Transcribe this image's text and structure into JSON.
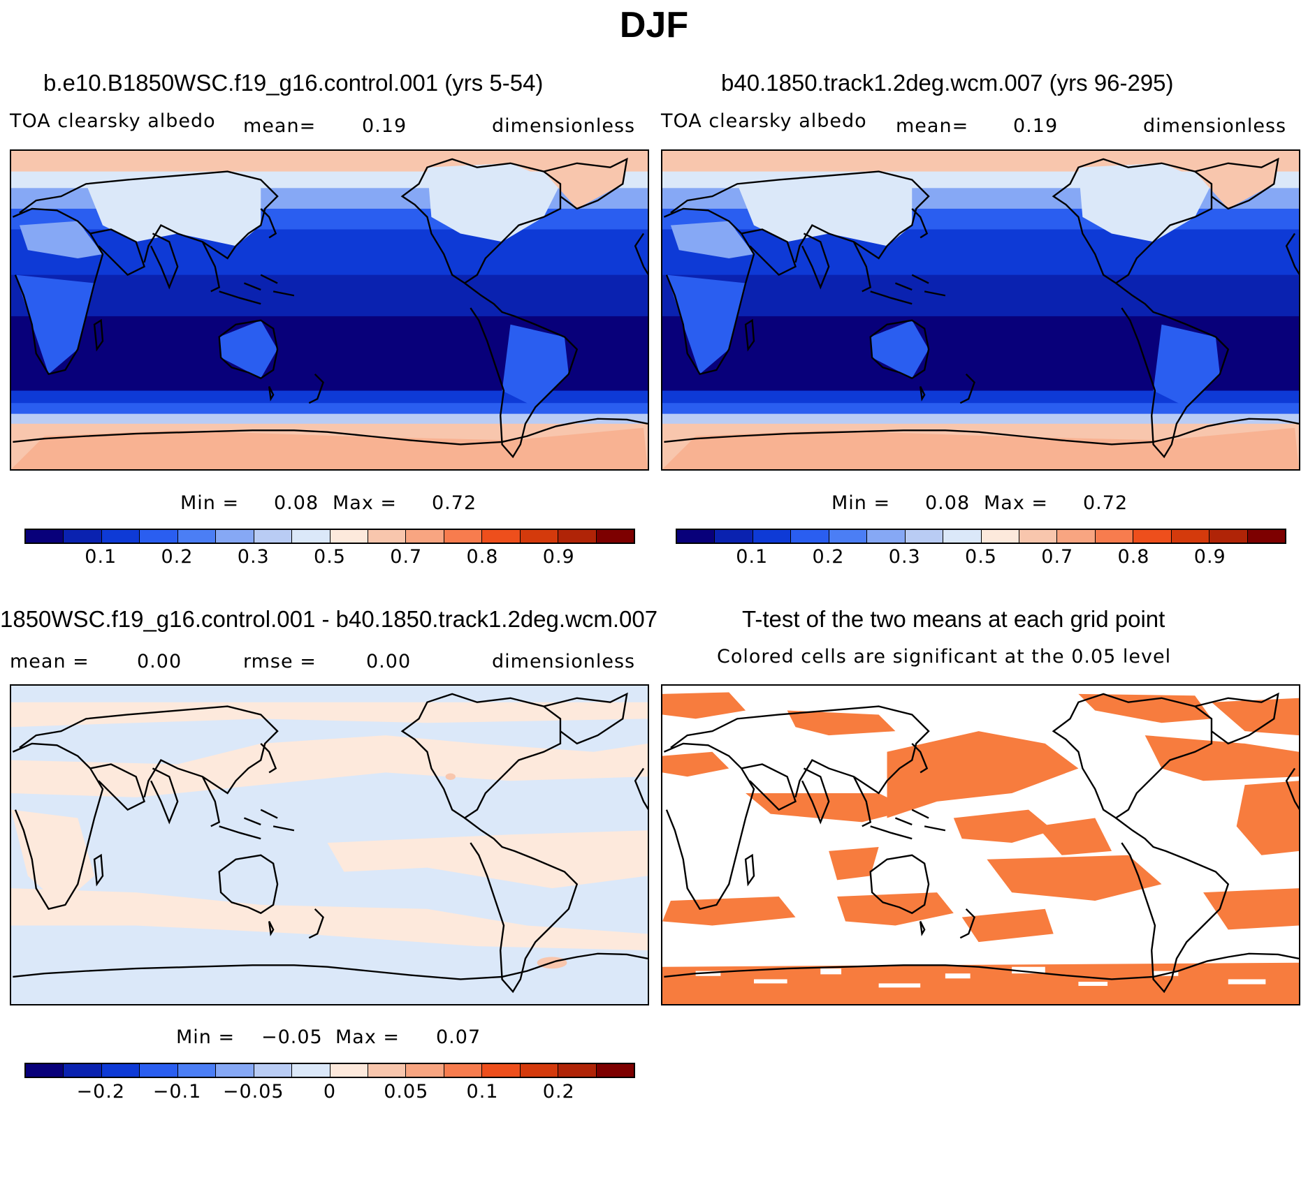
{
  "title": "DJF",
  "palette": [
    "#08007a",
    "#0a22b0",
    "#0e3ad6",
    "#2a5ef0",
    "#4b7ef5",
    "#86a8f5",
    "#b9ccf4",
    "#dbe8f9",
    "#fde9dc",
    "#f8c6ad",
    "#f8a581",
    "#f77c4e",
    "#ee4f1c",
    "#d43a0c",
    "#b02407",
    "#7d0000"
  ],
  "panels": {
    "top_left": {
      "title": "b.e10.B1850WSC.f19_g16.control.001 (yrs 5-54)",
      "variable": "TOA clearsky albedo",
      "mean_label": "mean=",
      "mean_value": "0.19",
      "units": "dimensionless",
      "min_label": "Min =",
      "min_value": "0.08",
      "max_label": "Max =",
      "max_value": "0.72",
      "ticks": [
        "0.1",
        "0.2",
        "0.3",
        "0.5",
        "0.7",
        "0.8",
        "0.9"
      ]
    },
    "top_right": {
      "title": "b40.1850.track1.2deg.wcm.007 (yrs 96-295)",
      "variable": "TOA clearsky albedo",
      "mean_label": "mean=",
      "mean_value": "0.19",
      "units": "dimensionless",
      "min_label": "Min =",
      "min_value": "0.08",
      "max_label": "Max =",
      "max_value": "0.72",
      "ticks": [
        "0.1",
        "0.2",
        "0.3",
        "0.5",
        "0.7",
        "0.8",
        "0.9"
      ]
    },
    "bottom_left": {
      "title": "1850WSC.f19_g16.control.001 - b40.1850.track1.2deg.wcm.007",
      "mean_label": "mean =",
      "mean_value": "0.00",
      "rmse_label": "rmse =",
      "rmse_value": "0.00",
      "units": "dimensionless",
      "min_label": "Min =",
      "min_value": "−0.05",
      "max_label": "Max =",
      "max_value": "0.07",
      "ticks": [
        "−0.2",
        "−0.1",
        "−0.05",
        "0",
        "0.05",
        "0.1",
        "0.2"
      ]
    },
    "bottom_right": {
      "title": "T-test of the two means at each grid point",
      "subtitle": "Colored cells are significant at the 0.05 level",
      "signif_color": "#f77c3e"
    }
  }
}
